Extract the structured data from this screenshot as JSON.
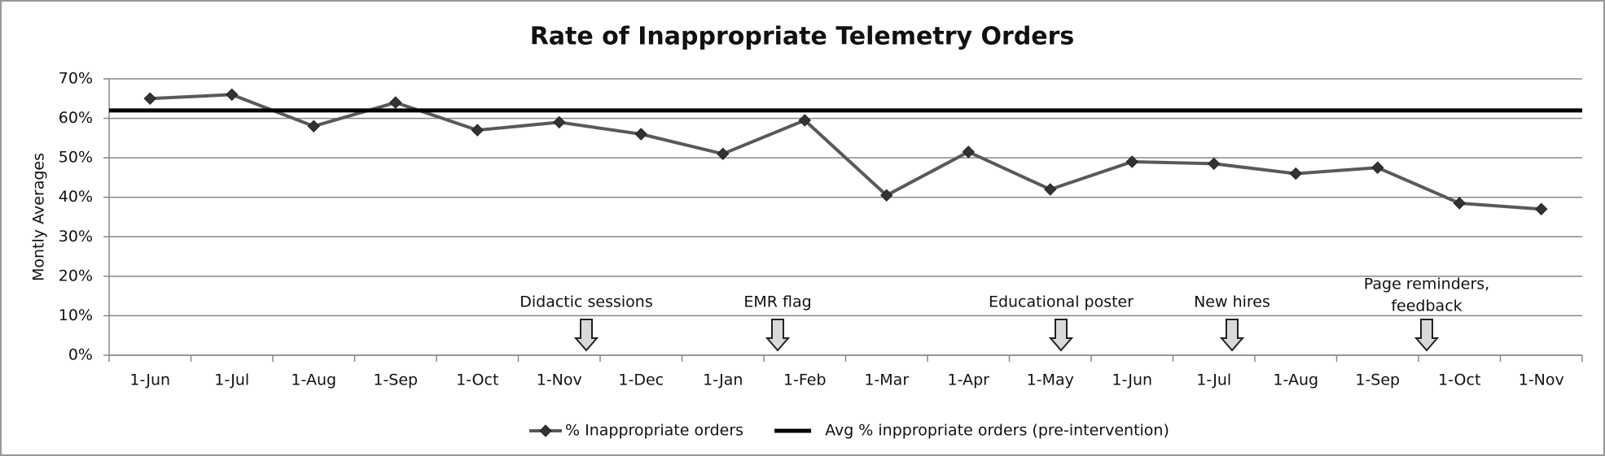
{
  "chart_data": {
    "type": "line",
    "title": "Rate of Inappropriate Telemetry Orders",
    "y_label": "Montly Averages",
    "categories": [
      "1-Jun",
      "1-Jul",
      "1-Aug",
      "1-Sep",
      "1-Oct",
      "1-Nov",
      "1-Dec",
      "1-Jan",
      "1-Feb",
      "1-Mar",
      "1-Apr",
      "1-May",
      "1-Jun",
      "1-Jul",
      "1-Aug",
      "1-Sep",
      "1-Oct",
      "1-Nov"
    ],
    "series": [
      {
        "name": "% Inappropriate orders",
        "color": "#595959",
        "values": [
          65,
          66,
          58,
          64,
          57,
          59,
          56,
          51,
          59.5,
          40.5,
          51.5,
          42,
          49,
          48.5,
          46,
          47.5,
          38.5,
          37
        ]
      },
      {
        "name": "Avg % inppropriate orders (pre-intervention)",
        "color": "#000000",
        "value": 62
      }
    ],
    "ylim": [
      0,
      70
    ],
    "yticks": [
      {
        "value": 0,
        "label": "0%"
      },
      {
        "value": 10,
        "label": "10%"
      },
      {
        "value": 20,
        "label": "20%"
      },
      {
        "value": 30,
        "label": "30%"
      },
      {
        "value": 40,
        "label": "40%"
      },
      {
        "value": 50,
        "label": "50%"
      },
      {
        "value": 60,
        "label": "60%"
      },
      {
        "value": 70,
        "label": "70%"
      }
    ],
    "grid": true,
    "legend": "bottom",
    "annotations": [
      [
        "Didactic sessions"
      ],
      [
        "EMR flag"
      ],
      [
        "Educational poster"
      ],
      [
        "New hires"
      ],
      [
        "Page reminders,",
        "feedback"
      ]
    ]
  }
}
